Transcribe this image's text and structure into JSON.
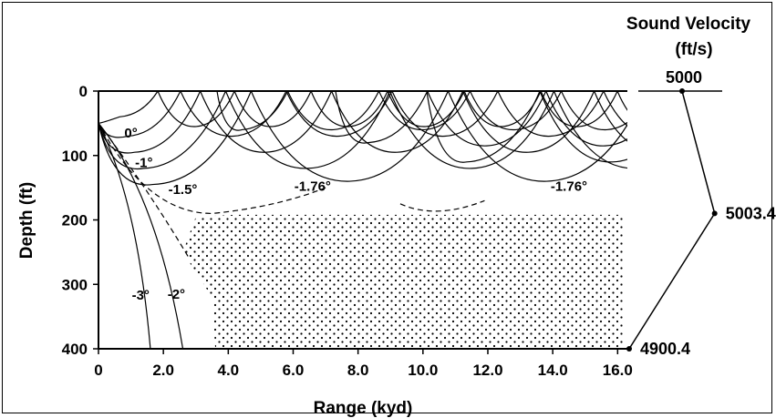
{
  "chart_data": {
    "type": "ray-trace",
    "xlabel": "Range (kyd)",
    "ylabel": "Depth (ft)",
    "xlim": [
      0,
      16.3
    ],
    "ylim": [
      0,
      400
    ],
    "x_ticks": [
      "0",
      "2.0",
      "4.0",
      "6.0",
      "8.0",
      "10.0",
      "12.0",
      "14.0",
      "16.0"
    ],
    "y_ticks": [
      "0",
      "100",
      "200",
      "300",
      "400"
    ],
    "source_depth": 50,
    "ray_angles": [
      "0°",
      "-1°",
      "-1.5°",
      "-1.76°",
      "-1.76°",
      "-2°",
      "-3°"
    ],
    "shadow_zone": {
      "x_start": 3.6,
      "depth_top": 195,
      "depth_bottom": 400
    },
    "profile": {
      "title": "Sound Velocity",
      "units": "(ft/s)",
      "points": [
        {
          "depth": 0,
          "velocity": "5000"
        },
        {
          "depth": 190,
          "velocity": "5003.4"
        },
        {
          "depth": 400,
          "velocity": "4900.4"
        }
      ]
    }
  }
}
